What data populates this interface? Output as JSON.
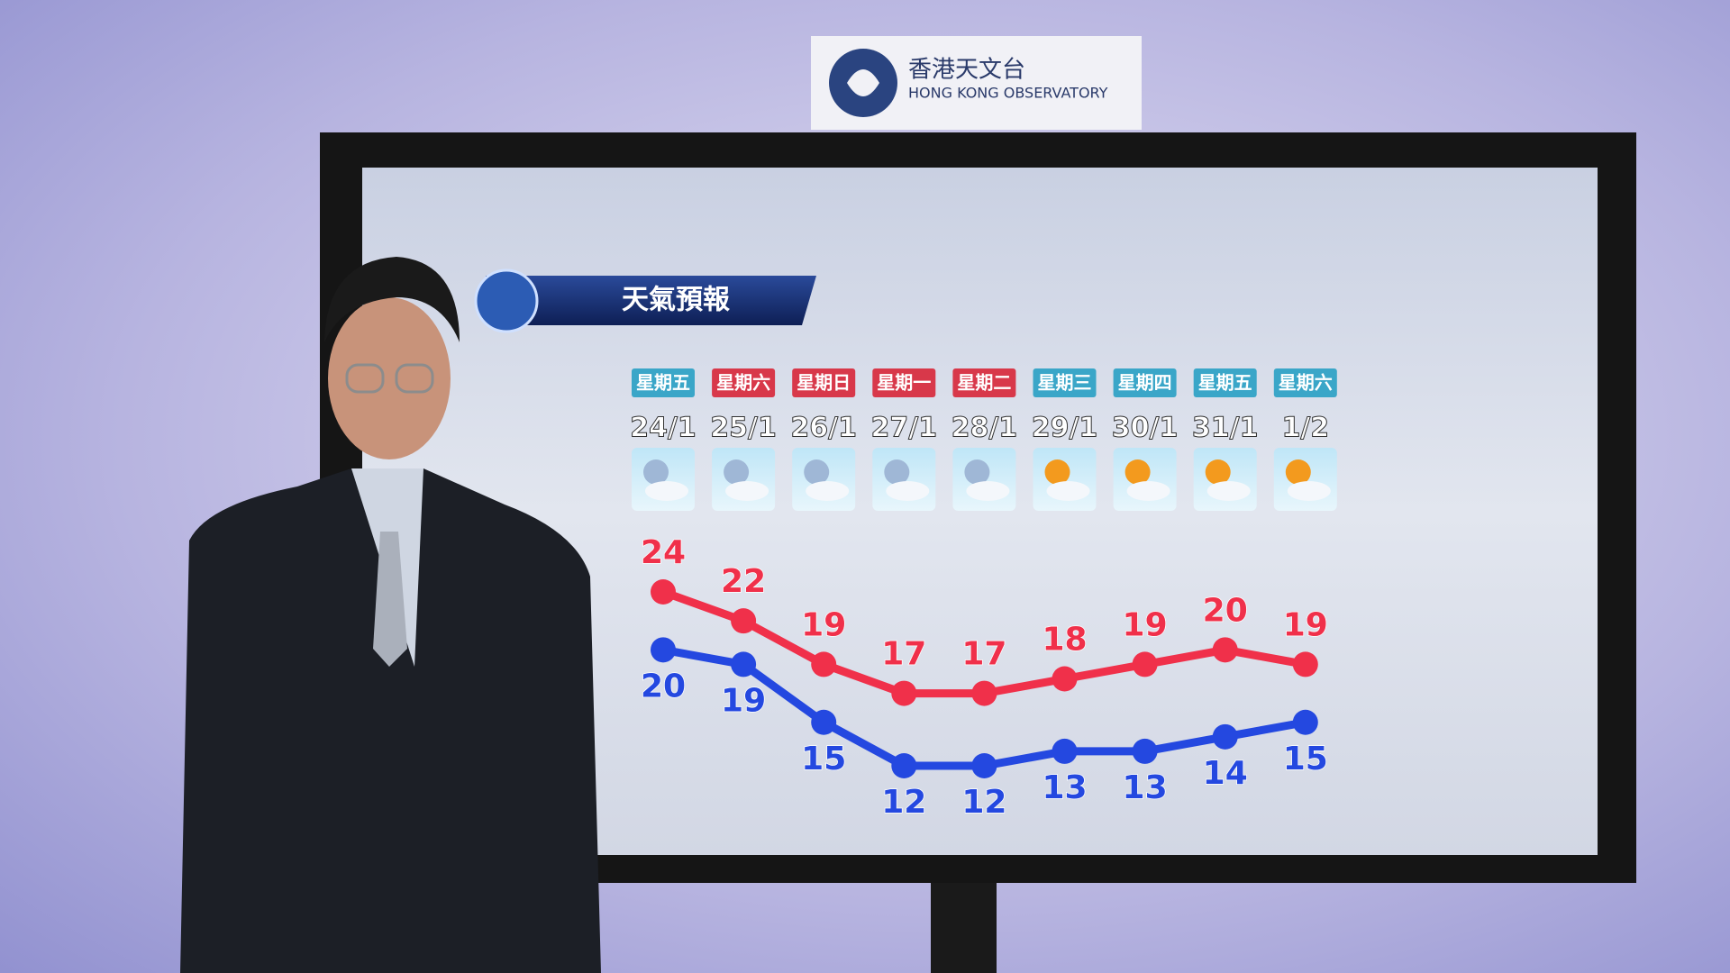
{
  "logo": {
    "name_zh": "香港天文台",
    "name_en": "HONG KONG OBSERVATORY"
  },
  "chart_data": {
    "type": "line",
    "title": "天氣預報",
    "weekdays": [
      "星期五",
      "星期六",
      "星期日",
      "星期一",
      "星期二",
      "星期三",
      "星期四",
      "星期五",
      "星期六"
    ],
    "weekday_colors": [
      "#3aa6c8",
      "#d8384a",
      "#d8384a",
      "#d8384a",
      "#d8384a",
      "#3aa6c8",
      "#3aa6c8",
      "#3aa6c8",
      "#3aa6c8"
    ],
    "categories": [
      "24/1",
      "25/1",
      "26/1",
      "27/1",
      "28/1",
      "29/1",
      "30/1",
      "31/1",
      "1/2"
    ],
    "series": [
      {
        "color": "#f0304a",
        "label_position": "above",
        "values": [
          24,
          22,
          19,
          17,
          17,
          18,
          19,
          20,
          19
        ]
      },
      {
        "color": "#2448e0",
        "label_position": "below",
        "values": [
          20,
          19,
          15,
          12,
          12,
          13,
          13,
          14,
          15
        ]
      }
    ]
  }
}
